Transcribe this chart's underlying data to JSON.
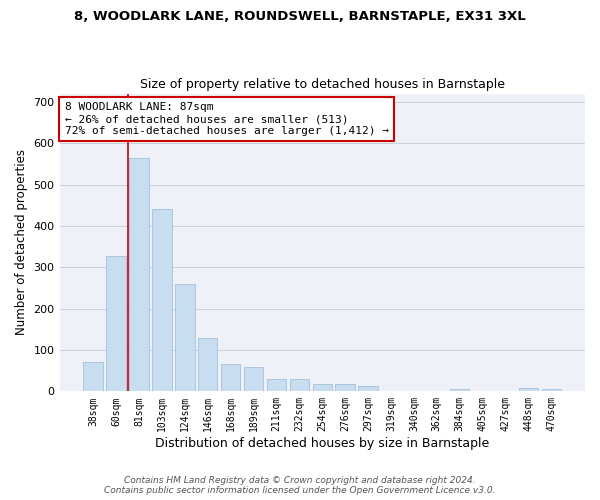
{
  "title": "8, WOODLARK LANE, ROUNDSWELL, BARNSTAPLE, EX31 3XL",
  "subtitle": "Size of property relative to detached houses in Barnstaple",
  "xlabel": "Distribution of detached houses by size in Barnstaple",
  "ylabel": "Number of detached properties",
  "categories": [
    "38sqm",
    "60sqm",
    "81sqm",
    "103sqm",
    "124sqm",
    "146sqm",
    "168sqm",
    "189sqm",
    "211sqm",
    "232sqm",
    "254sqm",
    "276sqm",
    "297sqm",
    "319sqm",
    "340sqm",
    "362sqm",
    "384sqm",
    "405sqm",
    "427sqm",
    "448sqm",
    "470sqm"
  ],
  "values": [
    72,
    328,
    565,
    440,
    260,
    128,
    65,
    60,
    30,
    30,
    17,
    17,
    12,
    0,
    0,
    0,
    5,
    0,
    0,
    8,
    5
  ],
  "bar_color": "#c9ddf0",
  "bar_edge_color": "#9ab8d8",
  "grid_color": "#c8d0dc",
  "bg_color": "#eef2f8",
  "annotation_box_text": "8 WOODLARK LANE: 87sqm\n← 26% of detached houses are smaller (513)\n72% of semi-detached houses are larger (1,412) →",
  "vline_x_index": 1.5,
  "vline_color": "#cc0000",
  "footer_line1": "Contains HM Land Registry data © Crown copyright and database right 2024.",
  "footer_line2": "Contains public sector information licensed under the Open Government Licence v3.0.",
  "ylim": [
    0,
    720
  ],
  "yticks": [
    0,
    100,
    200,
    300,
    400,
    500,
    600,
    700
  ]
}
